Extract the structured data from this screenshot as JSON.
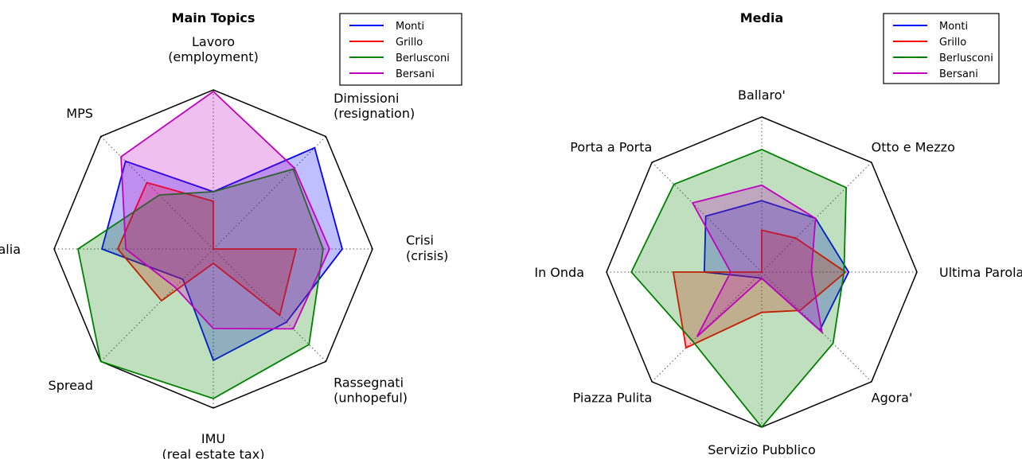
{
  "chart_data": [
    {
      "type": "radar",
      "title": "Main Topics",
      "categories": [
        "Lavoro\n(employment)",
        "Dimissioni\n(resignation)",
        "Crisi\n(crisis)",
        "Rassegnati\n(unhopeful)",
        "IMU\n(real estate tax)",
        "Spread",
        "Italia",
        "MPS"
      ],
      "ylim": [
        0,
        1
      ],
      "grid": true,
      "legend": "upper right",
      "series": [
        {
          "name": "Monti",
          "color": "#0000ff",
          "values": [
            0.36,
            0.9,
            0.81,
            0.65,
            0.7,
            0.27,
            0.7,
            0.78
          ]
        },
        {
          "name": "Grillo",
          "color": "#ff0000",
          "values": [
            0.3,
            0,
            0.52,
            0.59,
            0.09,
            0.46,
            0.6,
            0.59
          ]
        },
        {
          "name": "Berlusconi",
          "color": "#008000",
          "values": [
            0.36,
            0.71,
            0.69,
            0.85,
            0.94,
            1.0,
            0.85,
            0.48
          ]
        },
        {
          "name": "Bersani",
          "color": "#bf00bf",
          "values": [
            0.99,
            0.72,
            0.73,
            0.71,
            0.5,
            0.34,
            0.55,
            0.82
          ]
        }
      ]
    },
    {
      "type": "radar",
      "title": "Media",
      "categories": [
        "Ballaro'",
        "Otto e Mezzo",
        "Ultima Parola",
        "Agora'",
        "Servizio Pubblico",
        "Piazza Pulita",
        "In Onda",
        "Porta a Porta"
      ],
      "ylim": [
        0,
        1
      ],
      "grid": true,
      "legend": "upper right",
      "series": [
        {
          "name": "Monti",
          "color": "#0000ff",
          "values": [
            0.46,
            0.49,
            0.56,
            0.53,
            0.04,
            0.05,
            0.37,
            0.51
          ]
        },
        {
          "name": "Grillo",
          "color": "#ff0000",
          "values": [
            0.27,
            0.31,
            0.54,
            0.35,
            0.26,
            0.69,
            0.57,
            0
          ]
        },
        {
          "name": "Berlusconi",
          "color": "#008000",
          "values": [
            0.79,
            0.77,
            0.53,
            0.65,
            1.0,
            0.63,
            0.84,
            0.8
          ]
        },
        {
          "name": "Bersani",
          "color": "#bf00bf",
          "values": [
            0.56,
            0.49,
            0.32,
            0.55,
            0.04,
            0.59,
            0.2,
            0.63
          ]
        }
      ]
    }
  ]
}
